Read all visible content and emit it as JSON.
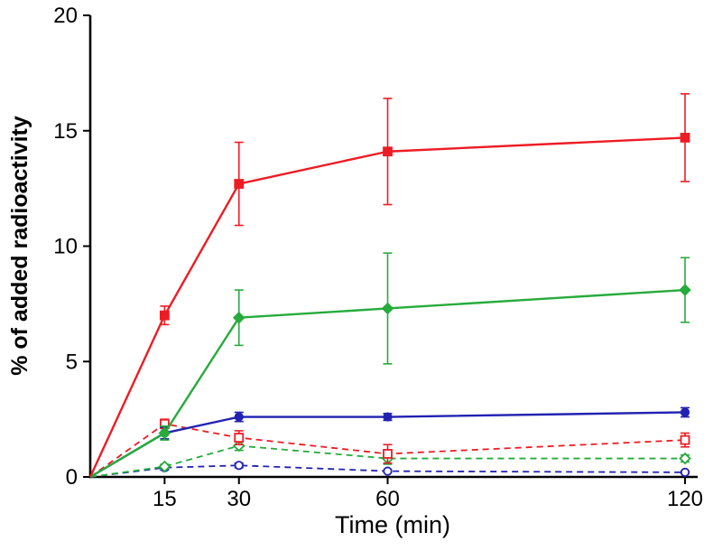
{
  "chart_data": {
    "type": "line",
    "title": "",
    "xlabel": "Time (min)",
    "ylabel": "% of added radioactivity",
    "x": [
      0,
      15,
      30,
      60,
      120
    ],
    "xticks": [
      15,
      30,
      60,
      120
    ],
    "yticks": [
      0,
      5,
      10,
      15,
      20
    ],
    "xlim": [
      0,
      122
    ],
    "ylim": [
      0,
      20
    ],
    "grid": false,
    "legend_position": "none",
    "error_bars": true,
    "colors": {
      "red": "#ed1c24",
      "green": "#27ab3c",
      "blue": "#2222b2"
    },
    "series": [
      {
        "name": "red-solid-filled-square",
        "color": "#ed1c24",
        "line": "solid",
        "marker": "square",
        "fill": "filled",
        "values": [
          0,
          7.0,
          12.7,
          14.1,
          14.7
        ],
        "yerr": [
          0,
          0.4,
          1.8,
          2.3,
          1.9
        ]
      },
      {
        "name": "green-solid-filled-diamond",
        "color": "#27ab3c",
        "line": "solid",
        "marker": "diamond",
        "fill": "filled",
        "values": [
          0,
          1.9,
          6.9,
          7.3,
          8.1
        ],
        "yerr": [
          0,
          0.3,
          1.2,
          2.4,
          1.4
        ]
      },
      {
        "name": "blue-solid-filled-circle",
        "color": "#2222b2",
        "line": "solid",
        "marker": "circle",
        "fill": "filled",
        "values": [
          0,
          1.9,
          2.6,
          2.6,
          2.8
        ],
        "yerr": [
          0,
          0.25,
          0.2,
          0.15,
          0.2
        ]
      },
      {
        "name": "red-dashed-open-square",
        "color": "#ed1c24",
        "line": "dashed",
        "marker": "square",
        "fill": "open",
        "values": [
          0,
          2.3,
          1.7,
          1.0,
          1.6
        ],
        "yerr": [
          0,
          0.2,
          0.3,
          0.4,
          0.3
        ]
      },
      {
        "name": "green-dashed-open-diamond",
        "color": "#27ab3c",
        "line": "dashed",
        "marker": "diamond",
        "fill": "open",
        "values": [
          0,
          0.45,
          1.35,
          0.8,
          0.8
        ],
        "yerr": [
          0,
          0.1,
          0.2,
          0.25,
          0.15
        ]
      },
      {
        "name": "blue-dashed-open-circle",
        "color": "#2222b2",
        "line": "dashed",
        "marker": "circle",
        "fill": "open",
        "values": [
          0,
          0.4,
          0.5,
          0.25,
          0.2
        ],
        "yerr": [
          0,
          0.1,
          0.1,
          0.05,
          0.05
        ]
      }
    ]
  }
}
